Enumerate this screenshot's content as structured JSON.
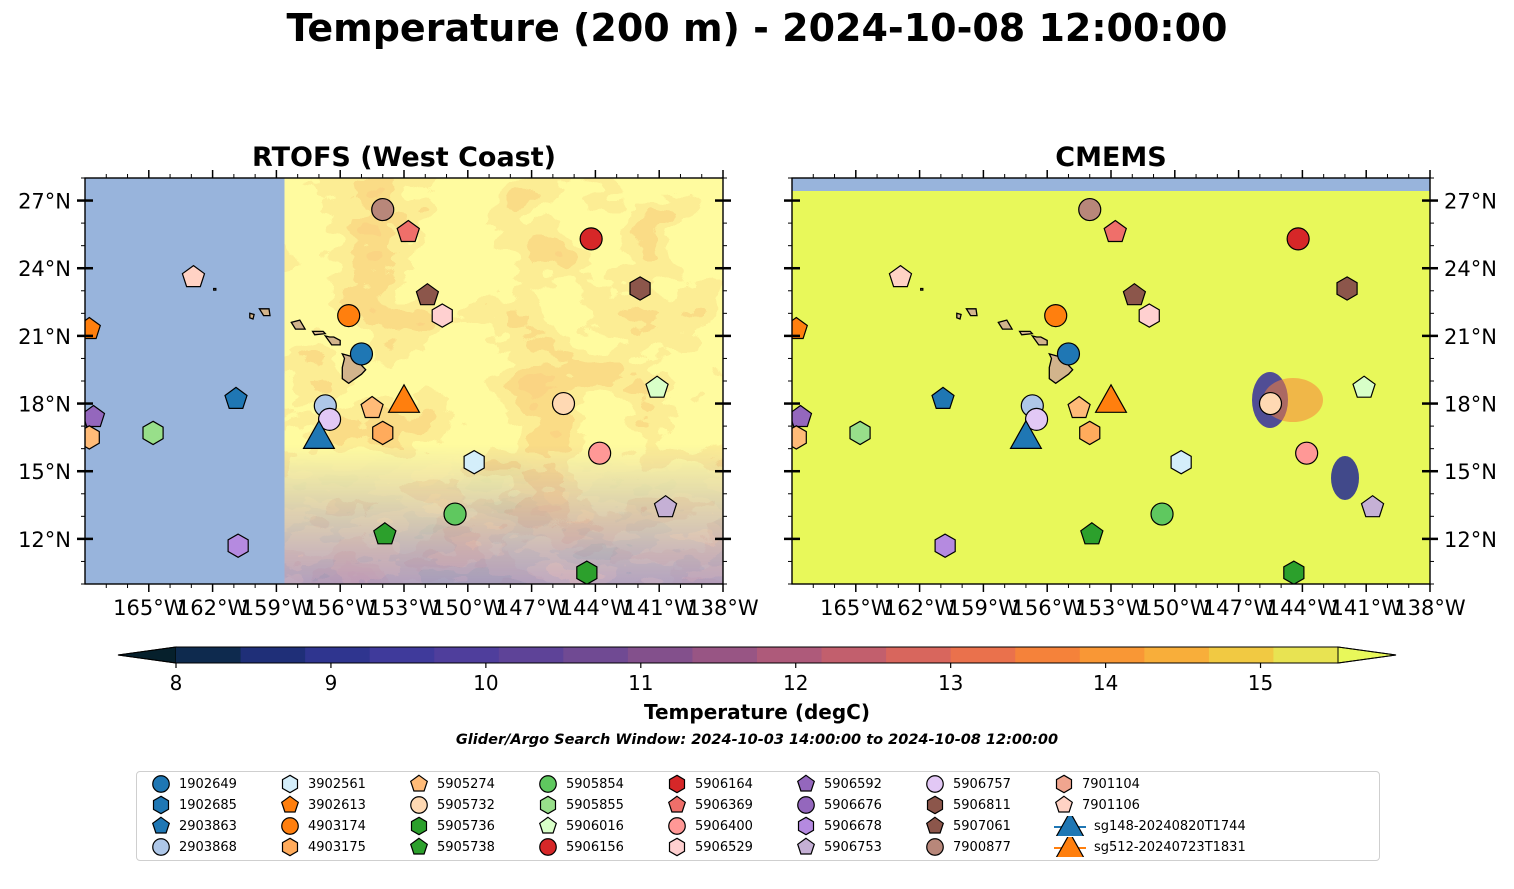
{
  "title": "Temperature (200 m) - 2024-10-08 12:00:00",
  "panels": [
    {
      "title": "RTOFS (West Coast)"
    },
    {
      "title": "CMEMS"
    }
  ],
  "map": {
    "lon_range": [
      -168,
      -138
    ],
    "lat_range": [
      10,
      28
    ],
    "lon_ticks": [
      {
        "value": -165,
        "label": "165°W"
      },
      {
        "value": -162,
        "label": "162°W"
      },
      {
        "value": -159,
        "label": "159°W"
      },
      {
        "value": -156,
        "label": "156°W"
      },
      {
        "value": -153,
        "label": "153°W"
      },
      {
        "value": -150,
        "label": "150°W"
      },
      {
        "value": -147,
        "label": "147°W"
      },
      {
        "value": -144,
        "label": "144°W"
      },
      {
        "value": -141,
        "label": "141°W"
      },
      {
        "value": -138,
        "label": "138°W"
      }
    ],
    "lat_ticks": [
      {
        "value": 12,
        "label": "12°N"
      },
      {
        "value": 15,
        "label": "15°N"
      },
      {
        "value": 18,
        "label": "18°N"
      },
      {
        "value": 21,
        "label": "21°N"
      },
      {
        "value": 24,
        "label": "24°N"
      },
      {
        "value": 27,
        "label": "27°N"
      }
    ],
    "rtofs_domain_west_lon": -158.6,
    "land_color": "#d2b48c",
    "nodata_color": "#98b4dc"
  },
  "colorbar": {
    "label": "Temperature (degC)",
    "ticks": [
      "8",
      "9",
      "10",
      "11",
      "12",
      "13",
      "14",
      "15"
    ],
    "colors": [
      "#06202c",
      "#0e2a4e",
      "#1f2f78",
      "#2f358f",
      "#3f3a9b",
      "#4f3e9c",
      "#5e4398",
      "#704a93",
      "#83508c",
      "#985584",
      "#ae5a7a",
      "#c25f6d",
      "#d8665d",
      "#ea714c",
      "#f5823a",
      "#f99735",
      "#f8ae3a",
      "#f1c942",
      "#e8e352",
      "#e8f85a"
    ]
  },
  "search_window": "Glider/Argo Search Window: 2024-10-03 14:00:00 to 2024-10-08 12:00:00",
  "legend": [
    {
      "label": "1902649",
      "marker": "circle",
      "color": "#1f77b4"
    },
    {
      "label": "1902685",
      "marker": "hexagon",
      "color": "#1f77b4"
    },
    {
      "label": "2903863",
      "marker": "pentagon",
      "color": "#1f77b4"
    },
    {
      "label": "2903868",
      "marker": "circle",
      "color": "#aec7e8"
    },
    {
      "label": "3902561",
      "marker": "hexagon",
      "color": "#d4eefa"
    },
    {
      "label": "3902613",
      "marker": "pentagon",
      "color": "#ff7f0e"
    },
    {
      "label": "4903174",
      "marker": "circle",
      "color": "#ff7f0e"
    },
    {
      "label": "4903175",
      "marker": "hexagon",
      "color": "#ffab5c"
    },
    {
      "label": "5905274",
      "marker": "pentagon",
      "color": "#ffbb78"
    },
    {
      "label": "5905732",
      "marker": "circle",
      "color": "#ffd9b3"
    },
    {
      "label": "5905736",
      "marker": "hexagon",
      "color": "#2ca02c"
    },
    {
      "label": "5905738",
      "marker": "pentagon",
      "color": "#2ca02c"
    },
    {
      "label": "5905854",
      "marker": "circle",
      "color": "#5fc85f"
    },
    {
      "label": "5905855",
      "marker": "hexagon",
      "color": "#98df8a"
    },
    {
      "label": "5906016",
      "marker": "pentagon",
      "color": "#d8ffc8"
    },
    {
      "label": "5906156",
      "marker": "circle",
      "color": "#d62728"
    },
    {
      "label": "5906164",
      "marker": "hexagon",
      "color": "#d62728"
    },
    {
      "label": "5906369",
      "marker": "pentagon",
      "color": "#ef6f6a"
    },
    {
      "label": "5906400",
      "marker": "circle",
      "color": "#ff9896"
    },
    {
      "label": "5906529",
      "marker": "hexagon",
      "color": "#ffd0d0"
    },
    {
      "label": "5906592",
      "marker": "pentagon",
      "color": "#9467bd"
    },
    {
      "label": "5906676",
      "marker": "circle",
      "color": "#9467bd"
    },
    {
      "label": "5906678",
      "marker": "hexagon",
      "color": "#b58ae0"
    },
    {
      "label": "5906753",
      "marker": "pentagon",
      "color": "#c5b0d5"
    },
    {
      "label": "5906757",
      "marker": "circle",
      "color": "#e2c8f5"
    },
    {
      "label": "5906811",
      "marker": "hexagon",
      "color": "#8c564b"
    },
    {
      "label": "5907061",
      "marker": "pentagon",
      "color": "#8c564b"
    },
    {
      "label": "7900877",
      "marker": "circle",
      "color": "#b8877a"
    },
    {
      "label": "7901104",
      "marker": "hexagon",
      "color": "#f0a58f"
    },
    {
      "label": "7901106",
      "marker": "pentagon",
      "color": "#ffd2c4"
    },
    {
      "label": "sg148-20240820T1744",
      "marker": "triangle",
      "color": "#1f77b4"
    },
    {
      "label": "sg512-20240723T1831",
      "marker": "triangle",
      "color": "#ff7f0e"
    }
  ],
  "observations": [
    {
      "lon": -167.8,
      "lat": 21.3,
      "marker": "pentagon",
      "color": "#ff7f0e"
    },
    {
      "lon": -167.6,
      "lat": 17.4,
      "marker": "pentagon",
      "color": "#9467bd"
    },
    {
      "lon": -167.8,
      "lat": 16.5,
      "marker": "hexagon",
      "color": "#ffbb78"
    },
    {
      "lon": -162.9,
      "lat": 23.6,
      "marker": "pentagon",
      "color": "#ffd2c4"
    },
    {
      "lon": -160.9,
      "lat": 18.2,
      "marker": "pentagon",
      "color": "#1f77b4"
    },
    {
      "lon": -164.8,
      "lat": 16.7,
      "marker": "hexagon",
      "color": "#98df8a"
    },
    {
      "lon": -160.8,
      "lat": 11.7,
      "marker": "hexagon",
      "color": "#b58ae0"
    },
    {
      "lon": -154.0,
      "lat": 26.6,
      "marker": "circle",
      "color": "#b8877a"
    },
    {
      "lon": -152.8,
      "lat": 25.6,
      "marker": "pentagon",
      "color": "#ef6f6a"
    },
    {
      "lon": -144.2,
      "lat": 25.3,
      "marker": "circle",
      "color": "#d62728"
    },
    {
      "lon": -151.9,
      "lat": 22.8,
      "marker": "pentagon",
      "color": "#8c564b"
    },
    {
      "lon": -141.9,
      "lat": 23.1,
      "marker": "hexagon",
      "color": "#8c564b"
    },
    {
      "lon": -155.6,
      "lat": 21.9,
      "marker": "circle",
      "color": "#ff7f0e"
    },
    {
      "lon": -151.2,
      "lat": 21.9,
      "marker": "hexagon",
      "color": "#ffd0d0"
    },
    {
      "lon": -155.0,
      "lat": 20.2,
      "marker": "circle",
      "color": "#1f77b4"
    },
    {
      "lon": -141.1,
      "lat": 18.7,
      "marker": "pentagon",
      "color": "#d8ffc8"
    },
    {
      "lon": -156.7,
      "lat": 17.9,
      "marker": "circle",
      "color": "#aec7e8"
    },
    {
      "lon": -156.5,
      "lat": 17.3,
      "marker": "circle",
      "color": "#e2c8f5"
    },
    {
      "lon": -154.5,
      "lat": 17.8,
      "marker": "pentagon",
      "color": "#ffbb78"
    },
    {
      "lon": -154.0,
      "lat": 16.7,
      "marker": "hexagon",
      "color": "#ffab5c"
    },
    {
      "lon": -145.5,
      "lat": 18.0,
      "marker": "circle",
      "color": "#ffd9b3"
    },
    {
      "lon": -149.7,
      "lat": 15.4,
      "marker": "hexagon",
      "color": "#d4eefa"
    },
    {
      "lon": -143.8,
      "lat": 15.8,
      "marker": "circle",
      "color": "#ff9896"
    },
    {
      "lon": -150.6,
      "lat": 13.1,
      "marker": "circle",
      "color": "#5fc85f"
    },
    {
      "lon": -140.7,
      "lat": 13.4,
      "marker": "pentagon",
      "color": "#c5b0d5"
    },
    {
      "lon": -153.9,
      "lat": 12.2,
      "marker": "pentagon",
      "color": "#2ca02c"
    },
    {
      "lon": -144.4,
      "lat": 10.5,
      "marker": "hexagon",
      "color": "#2ca02c"
    },
    {
      "lon": -157.0,
      "lat": 16.5,
      "marker": "triangle",
      "color": "#1f77b4"
    },
    {
      "lon": -153.0,
      "lat": 18.1,
      "marker": "triangle",
      "color": "#ff7f0e"
    }
  ]
}
